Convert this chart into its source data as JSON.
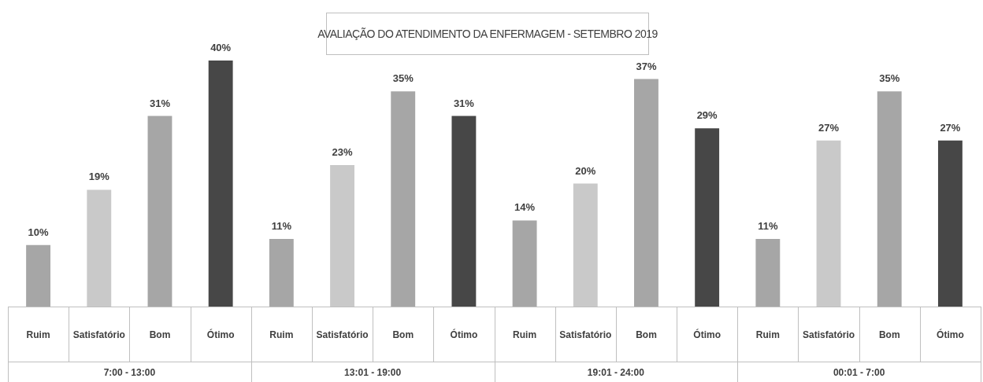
{
  "chart_data": {
    "type": "bar",
    "title": "AVALIAÇÃO DO ATENDIMENTO DA ENFERMAGEM - SETEMBRO 2019",
    "categories": [
      "Ruim",
      "Satisfatório",
      "Bom",
      "Ótimo",
      "Ruim",
      "Satisfatório",
      "Bom",
      "Ótimo",
      "Ruim",
      "Satisfatório",
      "Bom",
      "Ótimo",
      "Ruim",
      "Satisfatório",
      "Bom",
      "Ótimo"
    ],
    "values": [
      10,
      19,
      31,
      40,
      11,
      23,
      35,
      31,
      14,
      20,
      37,
      29,
      11,
      27,
      35,
      27
    ],
    "colors": [
      "#a6a6a6",
      "#c9c9c9",
      "#a6a6a6",
      "#474747",
      "#a6a6a6",
      "#c9c9c9",
      "#a6a6a6",
      "#474747",
      "#a6a6a6",
      "#c9c9c9",
      "#a6a6a6",
      "#474747",
      "#a6a6a6",
      "#c9c9c9",
      "#a6a6a6",
      "#474747"
    ],
    "value_labels": [
      "10%",
      "19%",
      "31%",
      "40%",
      "11%",
      "23%",
      "35%",
      "31%",
      "14%",
      "20%",
      "37%",
      "29%",
      "11%",
      "27%",
      "35%",
      "27%"
    ],
    "annotations": [
      "7:00 - 13:00",
      "13:01 - 19:00",
      "19:01 - 24:00",
      "00:01 - 7:00"
    ],
    "legend": false
  }
}
